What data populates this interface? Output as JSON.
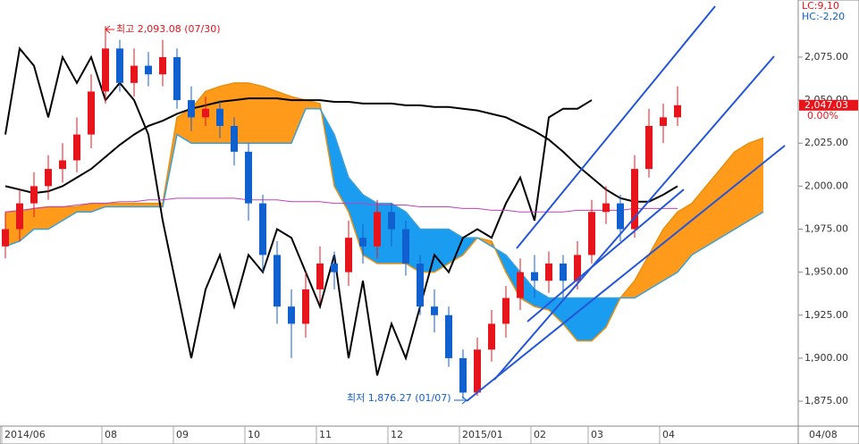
{
  "chart_data": {
    "type": "candlestick",
    "categories": [
      "2014/06",
      null,
      null,
      null,
      null,
      null,
      null,
      "08",
      null,
      null,
      null,
      null,
      "09",
      null,
      null,
      null,
      null,
      "10",
      null,
      null,
      null,
      null,
      "11",
      null,
      null,
      null,
      null,
      "12",
      null,
      null,
      null,
      null,
      "2015/01",
      null,
      null,
      null,
      null,
      "02",
      null,
      null,
      null,
      "03",
      null,
      null,
      null,
      null,
      "04",
      null,
      null,
      null,
      null,
      null,
      null,
      null
    ],
    "open": [
      1965,
      1975,
      1990,
      2000,
      2010,
      2015,
      2030,
      2055,
      2080,
      2060,
      2070,
      2065,
      2075,
      2050,
      2040,
      2045,
      2035,
      2020,
      1990,
      1960,
      1930,
      1920,
      1940,
      1955,
      1950,
      1970,
      1965,
      1985,
      1975,
      1955,
      1930,
      1925,
      1900,
      1880,
      1905,
      1920,
      1935,
      1950,
      1945,
      1955,
      1945,
      1960,
      1985,
      1990,
      1975,
      2010,
      2035,
      2040,
      null,
      null,
      null,
      null,
      null,
      null
    ],
    "high": [
      1985,
      1998,
      2008,
      2018,
      2025,
      2040,
      2065,
      2093.08,
      2085,
      2080,
      2078,
      2085,
      2080,
      2058,
      2052,
      2050,
      2040,
      2025,
      1995,
      1968,
      1940,
      1950,
      1965,
      1962,
      1980,
      1978,
      1992,
      1990,
      1980,
      1960,
      1940,
      1930,
      1905,
      1912,
      1928,
      1942,
      1958,
      1960,
      1962,
      1960,
      1968,
      1992,
      2000,
      1995,
      2018,
      2045,
      2048,
      2058,
      null,
      null,
      null,
      null,
      null,
      null
    ],
    "low": [
      1958,
      1968,
      1982,
      1992,
      2002,
      2008,
      2022,
      2048,
      2055,
      2052,
      2058,
      2058,
      2045,
      2032,
      2035,
      2028,
      2012,
      1980,
      1950,
      1920,
      1900,
      1912,
      1932,
      1940,
      1942,
      1955,
      1958,
      1965,
      1948,
      1925,
      1915,
      1895,
      1876.27,
      1878,
      1898,
      1912,
      1928,
      1935,
      1938,
      1935,
      1940,
      1955,
      1978,
      1968,
      1970,
      2005,
      2025,
      2035,
      null,
      null,
      null,
      null,
      null,
      null
    ],
    "close": [
      1975,
      1990,
      2000,
      2010,
      2015,
      2030,
      2055,
      2080,
      2060,
      2070,
      2065,
      2075,
      2050,
      2040,
      2045,
      2035,
      2020,
      1990,
      1960,
      1930,
      1920,
      1940,
      1955,
      1950,
      1970,
      1965,
      1985,
      1975,
      1955,
      1930,
      1925,
      1900,
      1880,
      1905,
      1920,
      1935,
      1950,
      1945,
      1955,
      1945,
      1960,
      1985,
      1990,
      1975,
      2010,
      2035,
      2040,
      2047.03,
      null,
      null,
      null,
      null,
      null,
      null
    ],
    "up_color": "#e8141b",
    "down_color": "#1060d0",
    "cloud": {
      "span_a": [
        1985,
        1985,
        1987,
        1988,
        1988,
        1988,
        1990,
        1990,
        1990,
        1990,
        1990,
        1990,
        2040,
        2045,
        2055,
        2058,
        2060,
        2060,
        2058,
        2055,
        2052,
        2050,
        2048,
        2000,
        1985,
        1960,
        1955,
        1955,
        1955,
        1950,
        1950,
        1955,
        1960,
        1970,
        1968,
        1950,
        1935,
        1930,
        1928,
        1920,
        1910,
        1910,
        1918,
        1935,
        1945,
        1960,
        1975,
        1985,
        1990,
        2000,
        2010,
        2020,
        2025,
        2028
      ],
      "span_b": [
        1965,
        1968,
        1975,
        1975,
        1980,
        1985,
        1985,
        1988,
        1988,
        1988,
        1988,
        1988,
        2030,
        2025,
        2025,
        2025,
        2025,
        2025,
        2025,
        2025,
        2025,
        2045,
        2045,
        2030,
        2005,
        1995,
        1990,
        1990,
        1985,
        1975,
        1975,
        1975,
        1970,
        1970,
        1965,
        1960,
        1950,
        1940,
        1935,
        1935,
        1935,
        1935,
        1935,
        1935,
        1935,
        1940,
        1945,
        1950,
        1960,
        1965,
        1970,
        1975,
        1980,
        1985
      ],
      "up_color": "#ff9a1a",
      "down_color": "#1a9cf0",
      "edge_color": "#3aa0d8"
    },
    "lines": [
      {
        "color": "#000000",
        "width": 2,
        "values": [
          2000,
          1998,
          1996,
          1997,
          2000,
          2005,
          2010,
          2017,
          2024,
          2030,
          2035,
          2038,
          2042,
          2045,
          2047,
          2049,
          2050,
          2051,
          2051,
          2051,
          2050,
          2050,
          2050,
          2049,
          2049,
          2048,
          2048,
          2048,
          2047,
          2047,
          2046,
          2046,
          2045,
          2044,
          2042,
          2040,
          2036,
          2032,
          2027,
          2020,
          2012,
          2005,
          1998,
          1993,
          1991,
          1991,
          1995,
          2000,
          null,
          null,
          null,
          null,
          null,
          null
        ]
      },
      {
        "color": "#000000",
        "width": 2,
        "values": [
          2030,
          2080,
          2070,
          2040,
          2075,
          2060,
          2075,
          2050,
          2060,
          2050,
          2030,
          1980,
          1940,
          1900,
          1940,
          1960,
          1930,
          1960,
          1950,
          1975,
          1970,
          1950,
          1930,
          1960,
          1900,
          1945,
          1890,
          1920,
          1900,
          1930,
          1960,
          1950,
          1970,
          1975,
          1970,
          1990,
          2005,
          1980,
          2040,
          2045,
          2045,
          2050,
          null,
          null,
          null,
          null,
          null,
          null,
          null,
          null,
          null,
          null,
          null,
          null
        ]
      },
      {
        "color": "#c040c0",
        "width": 1,
        "values": [
          1985,
          1986,
          1987,
          1988,
          1988,
          1989,
          1990,
          1990,
          1991,
          1991,
          1992,
          1992,
          1993,
          1993,
          1993,
          1993,
          1993,
          1992,
          1992,
          1992,
          1991,
          1991,
          1991,
          1990,
          1990,
          1990,
          1989,
          1989,
          1989,
          1988,
          1988,
          1988,
          1987,
          1987,
          1986,
          1986,
          1985,
          1985,
          1985,
          1985,
          1986,
          1986,
          1986,
          1986,
          1987,
          1987,
          1987,
          1987,
          null,
          null,
          null,
          null,
          null,
          null
        ]
      }
    ],
    "ylim": [
      1860.5,
      2108.2
    ],
    "yticks": [
      {
        "value": 1875,
        "label": "1,875.00"
      },
      {
        "value": 1900,
        "label": "1,900.00"
      },
      {
        "value": 1925,
        "label": "1,925.00"
      },
      {
        "value": 1950,
        "label": "1,950.00"
      },
      {
        "value": 1975,
        "label": "1,975.00"
      },
      {
        "value": 2000,
        "label": "2,000.00"
      },
      {
        "value": 2025,
        "label": "2,025.00"
      },
      {
        "value": 2050,
        "label": "2,050.00"
      },
      {
        "value": 2075,
        "label": "2,075.00"
      }
    ],
    "x_end_label": "04/08",
    "annotations": {
      "high": "최고 2,093.08 (07/30)",
      "low": "최저 1,876.27 (01/07)"
    },
    "legend": {
      "lc": "LC:9,10",
      "hc": "HC:-2,20"
    },
    "last_price": {
      "value": 2047.03,
      "label": "2,047.03",
      "change": "0.00%"
    }
  }
}
